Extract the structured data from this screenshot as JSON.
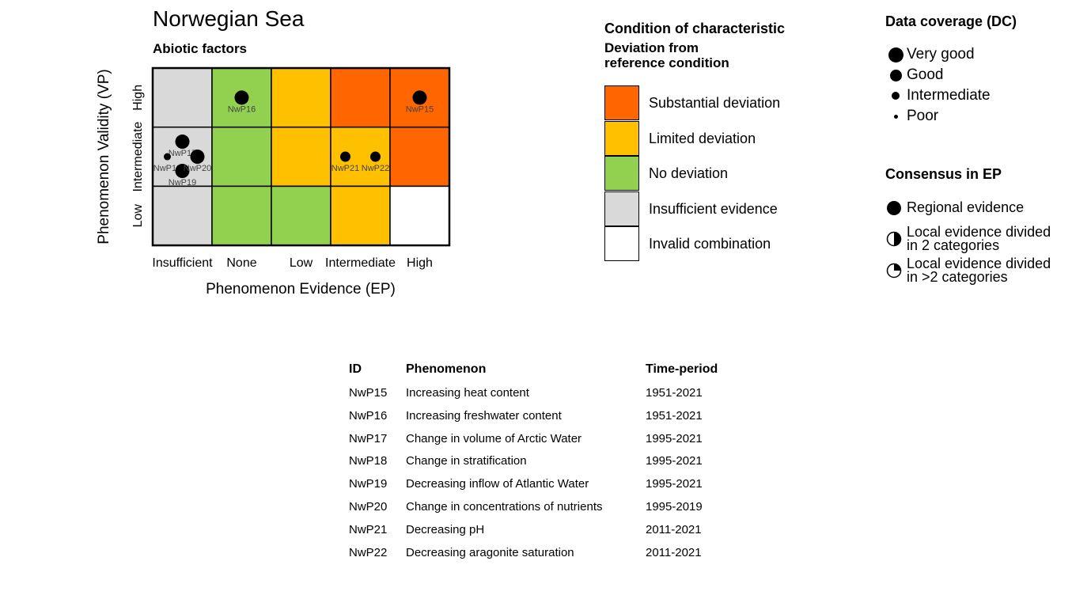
{
  "chart_data": {
    "type": "heatmap",
    "title": "Norwegian Sea",
    "subtitle": "Abiotic factors",
    "xlabel": "Phenomenon Evidence (EP)",
    "ylabel": "Phenomenon Validity (VP)",
    "x_categories": [
      "Insufficient",
      "None",
      "Low",
      "Intermediate",
      "High"
    ],
    "y_categories": [
      "Low",
      "Intermediate",
      "High"
    ],
    "cells": {
      "High": [
        "Insufficient evidence",
        "No deviation",
        "Limited deviation",
        "Substantial deviation",
        "Substantial deviation"
      ],
      "Intermediate": [
        "Insufficient evidence",
        "No deviation",
        "Limited deviation",
        "Limited deviation",
        "Substantial deviation"
      ],
      "Low": [
        "Insufficient evidence",
        "No deviation",
        "No deviation",
        "Limited deviation",
        "Invalid combination"
      ]
    },
    "points": [
      {
        "id": "NwP15",
        "ep": "High",
        "vp": "High",
        "dc": "Very good"
      },
      {
        "id": "NwP16",
        "ep": "None",
        "vp": "High",
        "dc": "Very good"
      },
      {
        "id": "NwP17",
        "ep": "Insufficient",
        "vp": "Intermediate",
        "dc": "Very good"
      },
      {
        "id": "NwP18",
        "ep": "Insufficient",
        "vp": "Intermediate",
        "dc": "Intermediate"
      },
      {
        "id": "NwP19",
        "ep": "Insufficient",
        "vp": "Intermediate",
        "dc": "Very good"
      },
      {
        "id": "NwP20",
        "ep": "Insufficient",
        "vp": "Intermediate",
        "dc": "Very good"
      },
      {
        "id": "NwP21",
        "ep": "Intermediate",
        "vp": "Intermediate",
        "dc": "Good"
      },
      {
        "id": "NwP22",
        "ep": "Intermediate",
        "vp": "Intermediate",
        "dc": "Good"
      }
    ]
  },
  "colors": {
    "Substantial deviation": "#FF6600",
    "Limited deviation": "#FFC000",
    "No deviation": "#92D050",
    "Insufficient evidence": "#D9D9D9",
    "Invalid combination": "#FFFFFF"
  },
  "condition_legend": {
    "title": "Condition of characteristic",
    "subtitle_line1": "Deviation from",
    "subtitle_line2": "reference condition",
    "items": [
      "Substantial deviation",
      "Limited deviation",
      "No deviation",
      "Insufficient evidence",
      "Invalid combination"
    ]
  },
  "dc_legend": {
    "title": "Data coverage (DC)",
    "items": [
      "Very good",
      "Good",
      "Intermediate",
      "Poor"
    ]
  },
  "consensus_legend": {
    "title": "Consensus in EP",
    "items": [
      {
        "icon": "full-circle",
        "line1": "Regional evidence",
        "line2": ""
      },
      {
        "icon": "half-circle",
        "line1": "Local evidence divided",
        "line2": "in 2 categories"
      },
      {
        "icon": "quarter-circle",
        "line1": "Local evidence divided",
        "line2": "in >2 categories"
      }
    ]
  },
  "table": {
    "headers": [
      "ID",
      "Phenomenon",
      "Time-period"
    ],
    "rows": [
      [
        "NwP15",
        "Increasing heat content",
        "1951-2021"
      ],
      [
        "NwP16",
        "Increasing freshwater content",
        "1951-2021"
      ],
      [
        "NwP17",
        "Change in volume of Arctic Water",
        "1995-2021"
      ],
      [
        "NwP18",
        "Change in stratification",
        "1995-2021"
      ],
      [
        "NwP19",
        "Decreasing inflow of Atlantic Water",
        "1995-2021"
      ],
      [
        "NwP20",
        "Change in concentrations of nutrients",
        "1995-2019"
      ],
      [
        "NwP21",
        "Decreasing pH",
        "2011-2021"
      ],
      [
        "NwP22",
        "Decreasing aragonite saturation",
        "2011-2021"
      ]
    ]
  }
}
